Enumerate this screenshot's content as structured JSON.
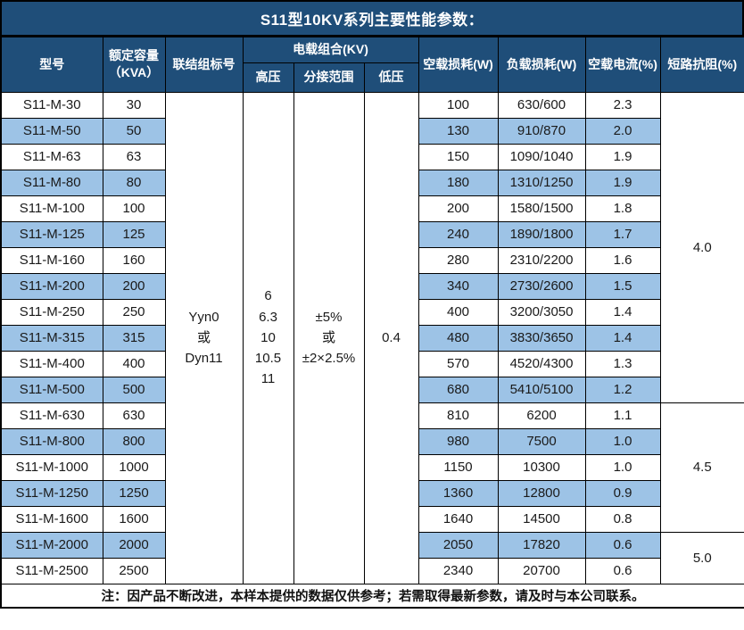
{
  "title": "S11型10KV系列主要性能参数：",
  "colors": {
    "header_bg": "#1F4E79",
    "stripe_bg": "#9DC3E6",
    "border": "#000000",
    "header_text": "#ffffff"
  },
  "table": {
    "columns": {
      "model": "型号",
      "capacity_line1": "额定容量",
      "capacity_line2": "（KVA）",
      "connection": "联结组标号",
      "combo_group": "电载组合(KV)",
      "hv": "高压",
      "tap": "分接范围",
      "lv": "低压",
      "no_load_loss": "空载损耗(W)",
      "load_loss": "负载损耗(W)",
      "no_load_current": "空载电流(%)",
      "impedance": "短路抗阻(%)"
    },
    "merged": {
      "connection": [
        "Yyn0",
        "或",
        "Dyn11"
      ],
      "hv": [
        "6",
        "6.3",
        "10",
        "10.5",
        "11"
      ],
      "tap": [
        "±5%",
        "或",
        "±2×2.5%"
      ],
      "lv": "0.4"
    },
    "rows": [
      {
        "model": "S11-M-30",
        "capacity": "30",
        "no_load_loss": "100",
        "load_loss": "630/600",
        "no_load_current": "2.3"
      },
      {
        "model": "S11-M-50",
        "capacity": "50",
        "no_load_loss": "130",
        "load_loss": "910/870",
        "no_load_current": "2.0"
      },
      {
        "model": "S11-M-63",
        "capacity": "63",
        "no_load_loss": "150",
        "load_loss": "1090/1040",
        "no_load_current": "1.9"
      },
      {
        "model": "S11-M-80",
        "capacity": "80",
        "no_load_loss": "180",
        "load_loss": "1310/1250",
        "no_load_current": "1.9"
      },
      {
        "model": "S11-M-100",
        "capacity": "100",
        "no_load_loss": "200",
        "load_loss": "1580/1500",
        "no_load_current": "1.8"
      },
      {
        "model": "S11-M-125",
        "capacity": "125",
        "no_load_loss": "240",
        "load_loss": "1890/1800",
        "no_load_current": "1.7"
      },
      {
        "model": "S11-M-160",
        "capacity": "160",
        "no_load_loss": "280",
        "load_loss": "2310/2200",
        "no_load_current": "1.6"
      },
      {
        "model": "S11-M-200",
        "capacity": "200",
        "no_load_loss": "340",
        "load_loss": "2730/2600",
        "no_load_current": "1.5"
      },
      {
        "model": "S11-M-250",
        "capacity": "250",
        "no_load_loss": "400",
        "load_loss": "3200/3050",
        "no_load_current": "1.4"
      },
      {
        "model": "S11-M-315",
        "capacity": "315",
        "no_load_loss": "480",
        "load_loss": "3830/3650",
        "no_load_current": "1.4"
      },
      {
        "model": "S11-M-400",
        "capacity": "400",
        "no_load_loss": "570",
        "load_loss": "4520/4300",
        "no_load_current": "1.3"
      },
      {
        "model": "S11-M-500",
        "capacity": "500",
        "no_load_loss": "680",
        "load_loss": "5410/5100",
        "no_load_current": "1.2"
      },
      {
        "model": "S11-M-630",
        "capacity": "630",
        "no_load_loss": "810",
        "load_loss": "6200",
        "no_load_current": "1.1"
      },
      {
        "model": "S11-M-800",
        "capacity": "800",
        "no_load_loss": "980",
        "load_loss": "7500",
        "no_load_current": "1.0"
      },
      {
        "model": "S11-M-1000",
        "capacity": "1000",
        "no_load_loss": "1150",
        "load_loss": "10300",
        "no_load_current": "1.0"
      },
      {
        "model": "S11-M-1250",
        "capacity": "1250",
        "no_load_loss": "1360",
        "load_loss": "12800",
        "no_load_current": "0.9"
      },
      {
        "model": "S11-M-1600",
        "capacity": "1600",
        "no_load_loss": "1640",
        "load_loss": "14500",
        "no_load_current": "0.8"
      },
      {
        "model": "S11-M-2000",
        "capacity": "2000",
        "no_load_loss": "2050",
        "load_loss": "17820",
        "no_load_current": "0.6"
      },
      {
        "model": "S11-M-2500",
        "capacity": "2500",
        "no_load_loss": "2340",
        "load_loss": "20700",
        "no_load_current": "0.6"
      }
    ],
    "impedance_groups": [
      {
        "value": "4.0",
        "rowspan": 12
      },
      {
        "value": "4.5",
        "rowspan": 5
      },
      {
        "value": "5.0",
        "rowspan": 2
      }
    ],
    "note": "注：因产品不断改进，本样本提供的数据仅供参考；若需取得最新参数，请及时与本公司联系。"
  }
}
